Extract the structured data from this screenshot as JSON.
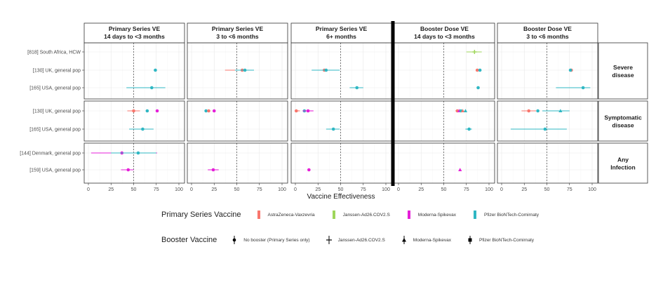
{
  "chart_data": {
    "type": "scatter",
    "xlabel": "Vaccine Effectiveness",
    "xlim": [
      0,
      100
    ],
    "xticks": [
      0,
      25,
      50,
      75,
      100
    ],
    "reference_line": 50,
    "grid": true,
    "panels": [
      {
        "title_line1": "Primary Series VE",
        "title_line2": "14 days to <3 months"
      },
      {
        "title_line1": "Primary Series VE",
        "title_line2": "3 to <6 months"
      },
      {
        "title_line1": "Primary Series VE",
        "title_line2": "6+ months"
      },
      {
        "title_line1": "Booster Dose VE",
        "title_line2": "14 days to <3 months"
      },
      {
        "title_line1": "Booster Dose VE",
        "title_line2": "3 to <6 months"
      }
    ],
    "rows": [
      {
        "label_line1": "Severe",
        "label_line2": "disease",
        "studies": [
          "[818] South Africa, HCW",
          "[130] UK, general pop",
          "[165] USA, general pop"
        ]
      },
      {
        "label_line1": "Symptomatic",
        "label_line2": "disease",
        "studies": [
          "[130] UK, general pop",
          "[165] USA, general pop"
        ]
      },
      {
        "label_line1": "Any",
        "label_line2": "Infection",
        "studies": [
          "[144] Denmark, general pop",
          "[159] USA, general pop"
        ]
      }
    ],
    "points": [
      {
        "row": 0,
        "study": 1,
        "col": 0,
        "ve": 74,
        "vaccine": "Pfizer BioNTech-Comirnaty",
        "booster": "No booster (Primary Series only)"
      },
      {
        "row": 0,
        "study": 2,
        "col": 0,
        "ve": 70,
        "lo": 42,
        "hi": 85,
        "vaccine": "Pfizer BioNTech-Comirnaty",
        "booster": "No booster (Primary Series only)"
      },
      {
        "row": 0,
        "study": 1,
        "col": 1,
        "ve": 56,
        "lo": 37,
        "hi": 66,
        "vaccine": "AstraZeneca-Vaxzevria",
        "booster": "No booster (Primary Series only)"
      },
      {
        "row": 0,
        "study": 1,
        "col": 1,
        "ve": 59,
        "lo": 48,
        "hi": 69,
        "vaccine": "Pfizer BioNTech-Comirnaty",
        "booster": "No booster (Primary Series only)"
      },
      {
        "row": 0,
        "study": 1,
        "col": 2,
        "ve": 32,
        "lo": 20,
        "hi": 42,
        "vaccine": "AstraZeneca-Vaxzevria",
        "booster": "No booster (Primary Series only)"
      },
      {
        "row": 0,
        "study": 1,
        "col": 2,
        "ve": 34,
        "lo": 18,
        "hi": 49,
        "vaccine": "Pfizer BioNTech-Comirnaty",
        "booster": "No booster (Primary Series only)"
      },
      {
        "row": 0,
        "study": 2,
        "col": 2,
        "ve": 68,
        "lo": 60,
        "hi": 75,
        "vaccine": "Pfizer BioNTech-Comirnaty",
        "booster": "No booster (Primary Series only)"
      },
      {
        "row": 0,
        "study": 0,
        "col": 3,
        "ve": 84,
        "lo": 75,
        "hi": 92,
        "vaccine": "Janssen-Ad26.COV2.S",
        "booster": "Janssen-Ad26.COV2.S"
      },
      {
        "row": 0,
        "study": 1,
        "col": 3,
        "ve": 87,
        "vaccine": "AstraZeneca-Vaxzevria",
        "booster": "Pfizer BioNTech-Comirnaty"
      },
      {
        "row": 0,
        "study": 1,
        "col": 3,
        "ve": 90,
        "vaccine": "Pfizer BioNTech-Comirnaty",
        "booster": "Pfizer BioNTech-Comirnaty"
      },
      {
        "row": 0,
        "study": 2,
        "col": 3,
        "ve": 88,
        "vaccine": "Pfizer BioNTech-Comirnaty",
        "booster": "Pfizer BioNTech-Comirnaty"
      },
      {
        "row": 0,
        "study": 1,
        "col": 4,
        "ve": 77,
        "vaccine": "AstraZeneca-Vaxzevria",
        "booster": "Pfizer BioNTech-Comirnaty"
      },
      {
        "row": 0,
        "study": 1,
        "col": 4,
        "ve": 76,
        "vaccine": "Pfizer BioNTech-Comirnaty",
        "booster": "Pfizer BioNTech-Comirnaty"
      },
      {
        "row": 0,
        "study": 2,
        "col": 4,
        "ve": 90,
        "lo": 60,
        "hi": 98,
        "vaccine": "Pfizer BioNTech-Comirnaty",
        "booster": "Pfizer BioNTech-Comirnaty"
      },
      {
        "row": 1,
        "study": 0,
        "col": 0,
        "ve": 50,
        "lo": 43,
        "hi": 57,
        "vaccine": "AstraZeneca-Vaxzevria",
        "booster": "No booster (Primary Series only)"
      },
      {
        "row": 1,
        "study": 0,
        "col": 0,
        "ve": 65,
        "vaccine": "Pfizer BioNTech-Comirnaty",
        "booster": "No booster (Primary Series only)"
      },
      {
        "row": 1,
        "study": 0,
        "col": 0,
        "ve": 76,
        "vaccine": "Moderna-Spikevax",
        "booster": "No booster (Primary Series only)"
      },
      {
        "row": 1,
        "study": 1,
        "col": 0,
        "ve": 60,
        "lo": 45,
        "hi": 72,
        "vaccine": "Pfizer BioNTech-Comirnaty",
        "booster": "No booster (Primary Series only)"
      },
      {
        "row": 1,
        "study": 0,
        "col": 1,
        "ve": 16,
        "vaccine": "Pfizer BioNTech-Comirnaty",
        "booster": "No booster (Primary Series only)"
      },
      {
        "row": 1,
        "study": 0,
        "col": 1,
        "ve": 19,
        "vaccine": "AstraZeneca-Vaxzevria",
        "booster": "No booster (Primary Series only)"
      },
      {
        "row": 1,
        "study": 0,
        "col": 1,
        "ve": 25,
        "vaccine": "Moderna-Spikevax",
        "booster": "No booster (Primary Series only)"
      },
      {
        "row": 1,
        "study": 0,
        "col": 2,
        "ve": 1,
        "lo": 0,
        "hi": 5,
        "vaccine": "AstraZeneca-Vaxzevria",
        "booster": "No booster (Primary Series only)"
      },
      {
        "row": 1,
        "study": 0,
        "col": 2,
        "ve": 10,
        "vaccine": "Pfizer BioNTech-Comirnaty",
        "booster": "No booster (Primary Series only)"
      },
      {
        "row": 1,
        "study": 0,
        "col": 2,
        "ve": 14,
        "lo": 8,
        "hi": 20,
        "vaccine": "Moderna-Spikevax",
        "booster": "No booster (Primary Series only)"
      },
      {
        "row": 1,
        "study": 1,
        "col": 2,
        "ve": 42,
        "lo": 34,
        "hi": 49,
        "vaccine": "Pfizer BioNTech-Comirnaty",
        "booster": "No booster (Primary Series only)"
      },
      {
        "row": 1,
        "study": 0,
        "col": 3,
        "ve": 65,
        "lo": 63,
        "hi": 67,
        "vaccine": "AstraZeneca-Vaxzevria",
        "booster": "Pfizer BioNTech-Comirnaty"
      },
      {
        "row": 1,
        "study": 0,
        "col": 3,
        "ve": 67,
        "vaccine": "Moderna-Spikevax",
        "booster": "Moderna-Spikevax"
      },
      {
        "row": 1,
        "study": 0,
        "col": 3,
        "ve": 69,
        "vaccine": "Pfizer BioNTech-Comirnaty",
        "booster": "Pfizer BioNTech-Comirnaty"
      },
      {
        "row": 1,
        "study": 0,
        "col": 3,
        "ve": 71,
        "vaccine": "AstraZeneca-Vaxzevria",
        "booster": "Moderna-Spikevax"
      },
      {
        "row": 1,
        "study": 0,
        "col": 3,
        "ve": 74,
        "vaccine": "Pfizer BioNTech-Comirnaty",
        "booster": "Moderna-Spikevax"
      },
      {
        "row": 1,
        "study": 1,
        "col": 3,
        "ve": 78,
        "lo": 74,
        "hi": 81,
        "vaccine": "Pfizer BioNTech-Comirnaty",
        "booster": "Pfizer BioNTech-Comirnaty"
      },
      {
        "row": 1,
        "study": 0,
        "col": 4,
        "ve": 30,
        "lo": 22,
        "hi": 38,
        "vaccine": "AstraZeneca-Vaxzevria",
        "booster": "Pfizer BioNTech-Comirnaty"
      },
      {
        "row": 1,
        "study": 0,
        "col": 4,
        "ve": 40,
        "vaccine": "Pfizer BioNTech-Comirnaty",
        "booster": "Pfizer BioNTech-Comirnaty"
      },
      {
        "row": 1,
        "study": 0,
        "col": 4,
        "ve": 65,
        "lo": 45,
        "hi": 75,
        "vaccine": "Pfizer BioNTech-Comirnaty",
        "booster": "Moderna-Spikevax"
      },
      {
        "row": 1,
        "study": 1,
        "col": 4,
        "ve": 48,
        "lo": 10,
        "hi": 72,
        "vaccine": "Pfizer BioNTech-Comirnaty",
        "booster": "Pfizer BioNTech-Comirnaty"
      },
      {
        "row": 2,
        "study": 0,
        "col": 0,
        "ve": 37,
        "lo": 3,
        "hi": 76,
        "vaccine": "Moderna-Spikevax",
        "booster": "No booster (Primary Series only)"
      },
      {
        "row": 2,
        "study": 0,
        "col": 0,
        "ve": 55,
        "lo": 25,
        "hi": 75,
        "vaccine": "Pfizer BioNTech-Comirnaty",
        "booster": "No booster (Primary Series only)"
      },
      {
        "row": 2,
        "study": 1,
        "col": 0,
        "ve": 44,
        "lo": 36,
        "hi": 50,
        "vaccine": "Moderna-Spikevax",
        "booster": "No booster (Primary Series only)"
      },
      {
        "row": 2,
        "study": 1,
        "col": 1,
        "ve": 24,
        "lo": 18,
        "hi": 30,
        "vaccine": "Moderna-Spikevax",
        "booster": "No booster (Primary Series only)"
      },
      {
        "row": 2,
        "study": 1,
        "col": 2,
        "ve": 15,
        "vaccine": "Moderna-Spikevax",
        "booster": "No booster (Primary Series only)"
      },
      {
        "row": 2,
        "study": 1,
        "col": 3,
        "ve": 68,
        "vaccine": "Moderna-Spikevax",
        "booster": "Moderna-Spikevax"
      }
    ]
  },
  "legend_primary": {
    "title": "Primary Series Vaccine",
    "items": [
      {
        "label": "AstraZeneca-Vaxzevria",
        "color": "#f8766d"
      },
      {
        "label": "Janssen-Ad26.COV2.S",
        "color": "#9fd65b"
      },
      {
        "label": "Moderna-Spikevax",
        "color": "#e51fd8"
      },
      {
        "label": "Pfizer BioNTech-Comirnaty",
        "color": "#2fb7c3"
      }
    ]
  },
  "legend_booster": {
    "title": "Booster Vaccine",
    "items": [
      {
        "label": "No booster (Primary Series only)",
        "shape": "circle"
      },
      {
        "label": "Janssen-Ad26.COV2.S",
        "shape": "plus"
      },
      {
        "label": "Moderna-Spikevax",
        "shape": "triangle"
      },
      {
        "label": "Pfizer BioNTech-Comirnaty",
        "shape": "square-dot"
      }
    ]
  }
}
